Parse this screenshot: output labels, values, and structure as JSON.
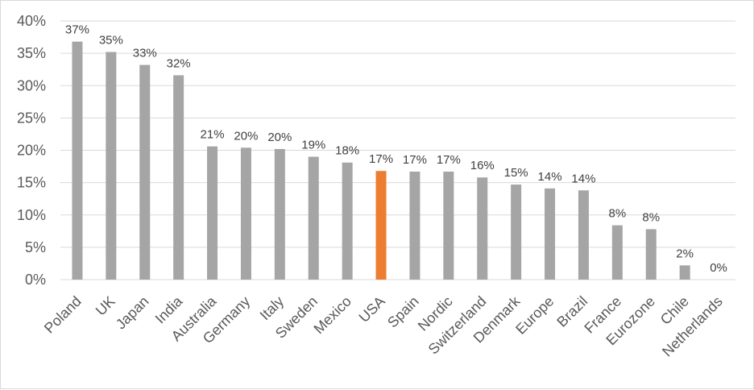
{
  "chart_data": {
    "type": "bar",
    "categories": [
      "Poland",
      "UK",
      "Japan",
      "India",
      "Australia",
      "Germany",
      "Italy",
      "Sweden",
      "Mexico",
      "USA",
      "Spain",
      "Nordic",
      "Switzerland",
      "Denmark",
      "Europe",
      "Brazil",
      "France",
      "Eurozone",
      "Chile",
      "Netherlands"
    ],
    "values": [
      36.8,
      35.2,
      33.2,
      31.6,
      20.6,
      20.4,
      20.2,
      19.0,
      18.1,
      16.8,
      16.7,
      16.7,
      15.8,
      14.7,
      14.1,
      13.8,
      8.4,
      7.8,
      2.2,
      0
    ],
    "data_labels": [
      "37%",
      "35%",
      "33%",
      "32%",
      "21%",
      "20%",
      "20%",
      "19%",
      "18%",
      "17%",
      "17%",
      "17%",
      "16%",
      "15%",
      "14%",
      "14%",
      "8%",
      "8%",
      "2%",
      "0%"
    ],
    "highlight_category": "USA",
    "colors": {
      "default": "#a5a5a5",
      "highlight": "#ed7d31",
      "grid": "#d9d9d9"
    },
    "ylim": [
      0,
      40
    ],
    "yticks": [
      0,
      5,
      10,
      15,
      20,
      25,
      30,
      35,
      40
    ],
    "ytick_labels": [
      "0%",
      "5%",
      "10%",
      "15%",
      "20%",
      "25%",
      "30%",
      "35%",
      "40%"
    ],
    "grid": true,
    "legend": "none",
    "title": "",
    "xlabel": "",
    "ylabel": ""
  }
}
